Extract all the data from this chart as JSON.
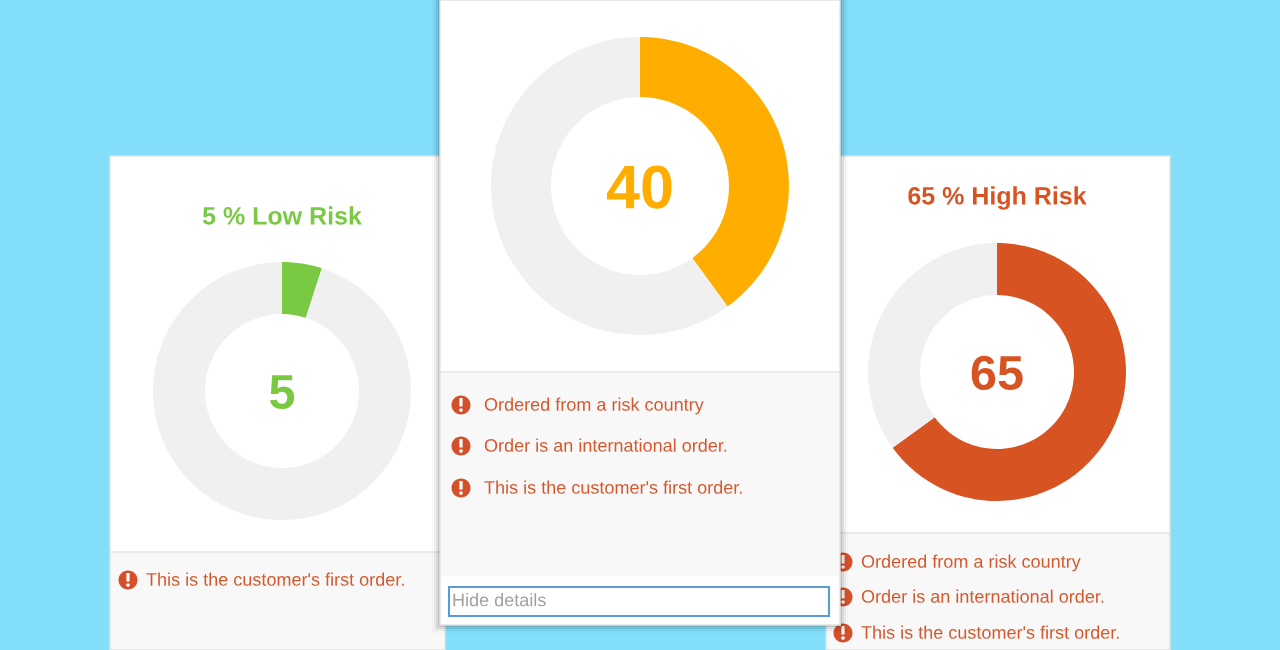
{
  "chart_data": [
    {
      "type": "donut",
      "title": "5 % Low Risk",
      "categories": [
        null,
        null
      ],
      "values": [
        5,
        95
      ],
      "colors": [
        "#7ac943",
        "#f0f0f0"
      ],
      "annotations": [
        "5",
        "This is the customer's first order."
      ]
    },
    {
      "type": "donut",
      "categories": [
        null,
        null
      ],
      "values": [
        40,
        60
      ],
      "colors": [
        "#ffae00",
        "#f0f0f0"
      ],
      "annotations": [
        "40",
        "Ordered from a risk country",
        "Order is an international order.",
        "This is the customer's first order.",
        "Hide details"
      ]
    },
    {
      "type": "donut",
      "title": "65 % High Risk",
      "categories": [
        null,
        null
      ],
      "values": [
        65,
        35
      ],
      "colors": [
        "#d75322",
        "#f0f0f0"
      ],
      "annotations": [
        "65",
        "Ordered from a risk country",
        "Order is an international order.",
        "This is the customer's first order."
      ]
    }
  ]
}
